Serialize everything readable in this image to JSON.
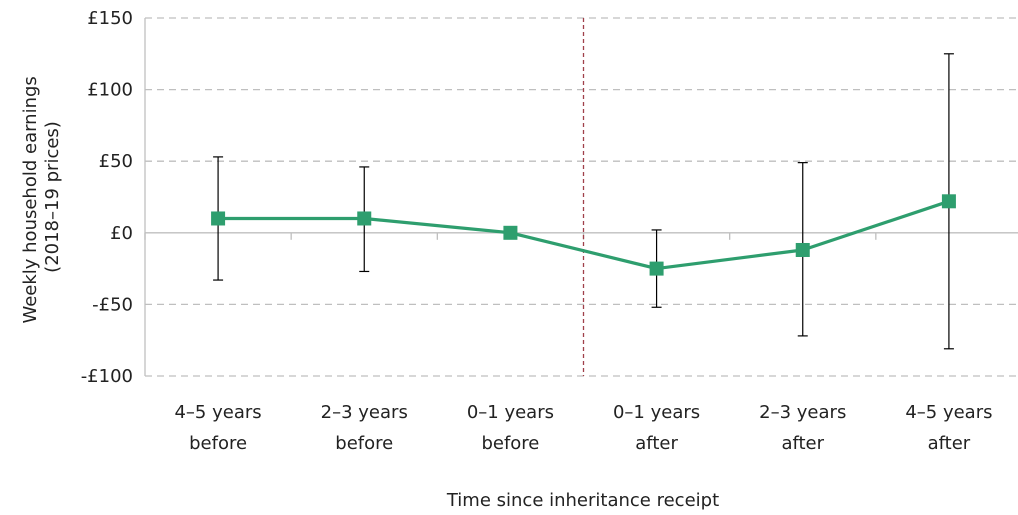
{
  "chart_data": {
    "type": "line",
    "title": "",
    "xlabel": "Time since inheritance receipt",
    "ylabel_lines": [
      "Weekly household earnings",
      "(2018–19 prices)"
    ],
    "categories": [
      [
        "4–5 years",
        "before"
      ],
      [
        "2–3 years",
        "before"
      ],
      [
        "0–1 years",
        "before"
      ],
      [
        "0–1 years",
        "after"
      ],
      [
        "2–3 years",
        "after"
      ],
      [
        "4–5 years",
        "after"
      ]
    ],
    "series": [
      {
        "values": [
          10,
          10,
          0,
          -25,
          -12,
          22
        ],
        "error_low": [
          -33,
          -27,
          0,
          -52,
          -72,
          -81
        ],
        "error_high": [
          53,
          46,
          0,
          2,
          49,
          125
        ]
      }
    ],
    "ylim": [
      -100,
      150
    ],
    "yticks": [
      -100,
      -50,
      0,
      50,
      100,
      150
    ],
    "ytick_labels": [
      "-£100",
      "-£50",
      "£0",
      "£50",
      "£100",
      "£150"
    ],
    "divider_between_categories": [
      2,
      3
    ],
    "grid": true,
    "colors": {
      "series": "#2e9e6e",
      "error_bar": "#000000",
      "grid": "#bfbfbf",
      "divider": "#a0404a",
      "axis": "#bfbfbf"
    }
  }
}
